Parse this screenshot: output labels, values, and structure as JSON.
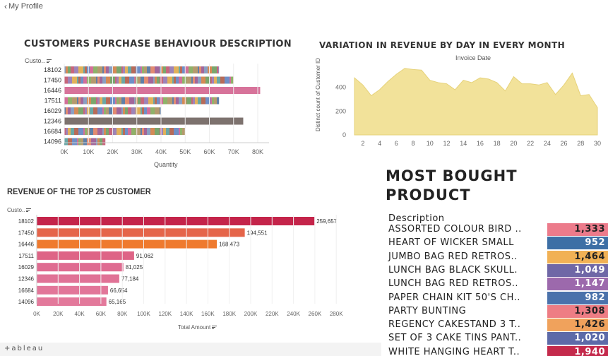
{
  "topbar": {
    "back_label": "My Profile"
  },
  "footer": {
    "brand": "+ableau"
  },
  "purchase_chart": {
    "title": "CUSTOMERS PURCHASE BEHAVIOUR DESCRIPTION",
    "row_header": "Custo..",
    "xlabel": "Quantity",
    "x_ticks": [
      "0K",
      "10K",
      "20K",
      "30K",
      "40K",
      "50K",
      "60K",
      "70K",
      "80K"
    ],
    "xlim": [
      0,
      80000
    ],
    "customers": [
      "18102",
      "17450",
      "16446",
      "17511",
      "16029",
      "12346",
      "16684",
      "14096"
    ],
    "totals": [
      64000,
      70000,
      81000,
      64000,
      40000,
      74000,
      50000,
      17000
    ],
    "segment_style": [
      "multi",
      "multi",
      "solid-pink",
      "multi",
      "multi",
      "solid-gray",
      "multi",
      "multi"
    ],
    "colors": {
      "pink": "#d7739a",
      "gray": "#7d726e"
    }
  },
  "revenue_day_chart": {
    "title": "VARIATION IN REVENUE BY DAY IN EVERY MONTH",
    "subtitle": "Invoice Date",
    "ylabel": "Distinct count of Customer ID",
    "y_ticks": [
      "400",
      "200",
      "0"
    ],
    "x_ticks": [
      "2",
      "4",
      "6",
      "8",
      "10",
      "12",
      "14",
      "16",
      "18",
      "20",
      "22",
      "24",
      "26",
      "28",
      "30"
    ],
    "ylim": [
      0,
      600
    ],
    "x": [
      1,
      2,
      3,
      4,
      5,
      6,
      7,
      8,
      9,
      10,
      11,
      12,
      13,
      14,
      15,
      16,
      17,
      18,
      19,
      20,
      21,
      22,
      23,
      24,
      25,
      26,
      27,
      28,
      29,
      30,
      31
    ],
    "values": [
      480,
      420,
      330,
      380,
      450,
      510,
      560,
      550,
      545,
      460,
      440,
      430,
      380,
      460,
      440,
      480,
      470,
      440,
      370,
      490,
      430,
      430,
      420,
      440,
      340,
      420,
      520,
      330,
      340,
      230,
      null
    ],
    "fill": "#f2e29a"
  },
  "top25_chart": {
    "title": "REVENUE OF THE TOP 25 CUSTOMER",
    "row_header": "Custo..",
    "xlabel": "Total Amount",
    "x_ticks": [
      "0K",
      "20K",
      "40K",
      "60K",
      "80K",
      "100K",
      "120K",
      "140K",
      "160K",
      "180K",
      "200K",
      "220K",
      "240K",
      "260K",
      "280K"
    ],
    "xlim": [
      0,
      280000
    ],
    "categories": [
      "18102",
      "17450",
      "16446",
      "17511",
      "16029",
      "12346",
      "16684",
      "14096"
    ],
    "values": [
      259657,
      194551,
      168473,
      91062,
      81025,
      77184,
      66654,
      65165
    ],
    "value_labels": [
      "259,657",
      "194,551",
      "168,473",
      "91,062",
      "81,025",
      "77,184",
      "66,654",
      "65,165"
    ],
    "colors": [
      "#c4244a",
      "#e5654a",
      "#ef7a2e",
      "#de6486",
      "#df6c91",
      "#e07296",
      "#e27699",
      "#e3799b"
    ]
  },
  "most_bought": {
    "title_line1": "MOST BOUGHT",
    "title_line2": "PRODUCT",
    "column_header": "Description",
    "rows": [
      {
        "desc": "ASSORTED COLOUR BIRD ..",
        "value": "1,333",
        "color": "#ec7b8b",
        "text_color": "#222"
      },
      {
        "desc": "HEART OF WICKER SMALL",
        "value": "952",
        "color": "#3d6fa5",
        "text_color": "#fff"
      },
      {
        "desc": "JUMBO BAG RED RETROS..",
        "value": "1,464",
        "color": "#f1b155",
        "text_color": "#222"
      },
      {
        "desc": "LUNCH BAG  BLACK SKULL.",
        "value": "1,049",
        "color": "#6f67a6",
        "text_color": "#fff"
      },
      {
        "desc": "LUNCH BAG RED RETROS..",
        "value": "1,147",
        "color": "#9c69ac",
        "text_color": "#fff"
      },
      {
        "desc": "PAPER CHAIN KIT 50'S CH..",
        "value": "982",
        "color": "#4b72ab",
        "text_color": "#fff"
      },
      {
        "desc": "PARTY BUNTING",
        "value": "1,308",
        "color": "#ee7d84",
        "text_color": "#222"
      },
      {
        "desc": "REGENCY CAKESTAND 3 T..",
        "value": "1,426",
        "color": "#f0a25c",
        "text_color": "#222"
      },
      {
        "desc": "SET OF 3 CAKE TINS PANT..",
        "value": "1,020",
        "color": "#5d6aa8",
        "text_color": "#fff"
      },
      {
        "desc": "WHITE HANGING HEART T..",
        "value": "1,940",
        "color": "#c42a4c",
        "text_color": "#fff"
      }
    ]
  }
}
